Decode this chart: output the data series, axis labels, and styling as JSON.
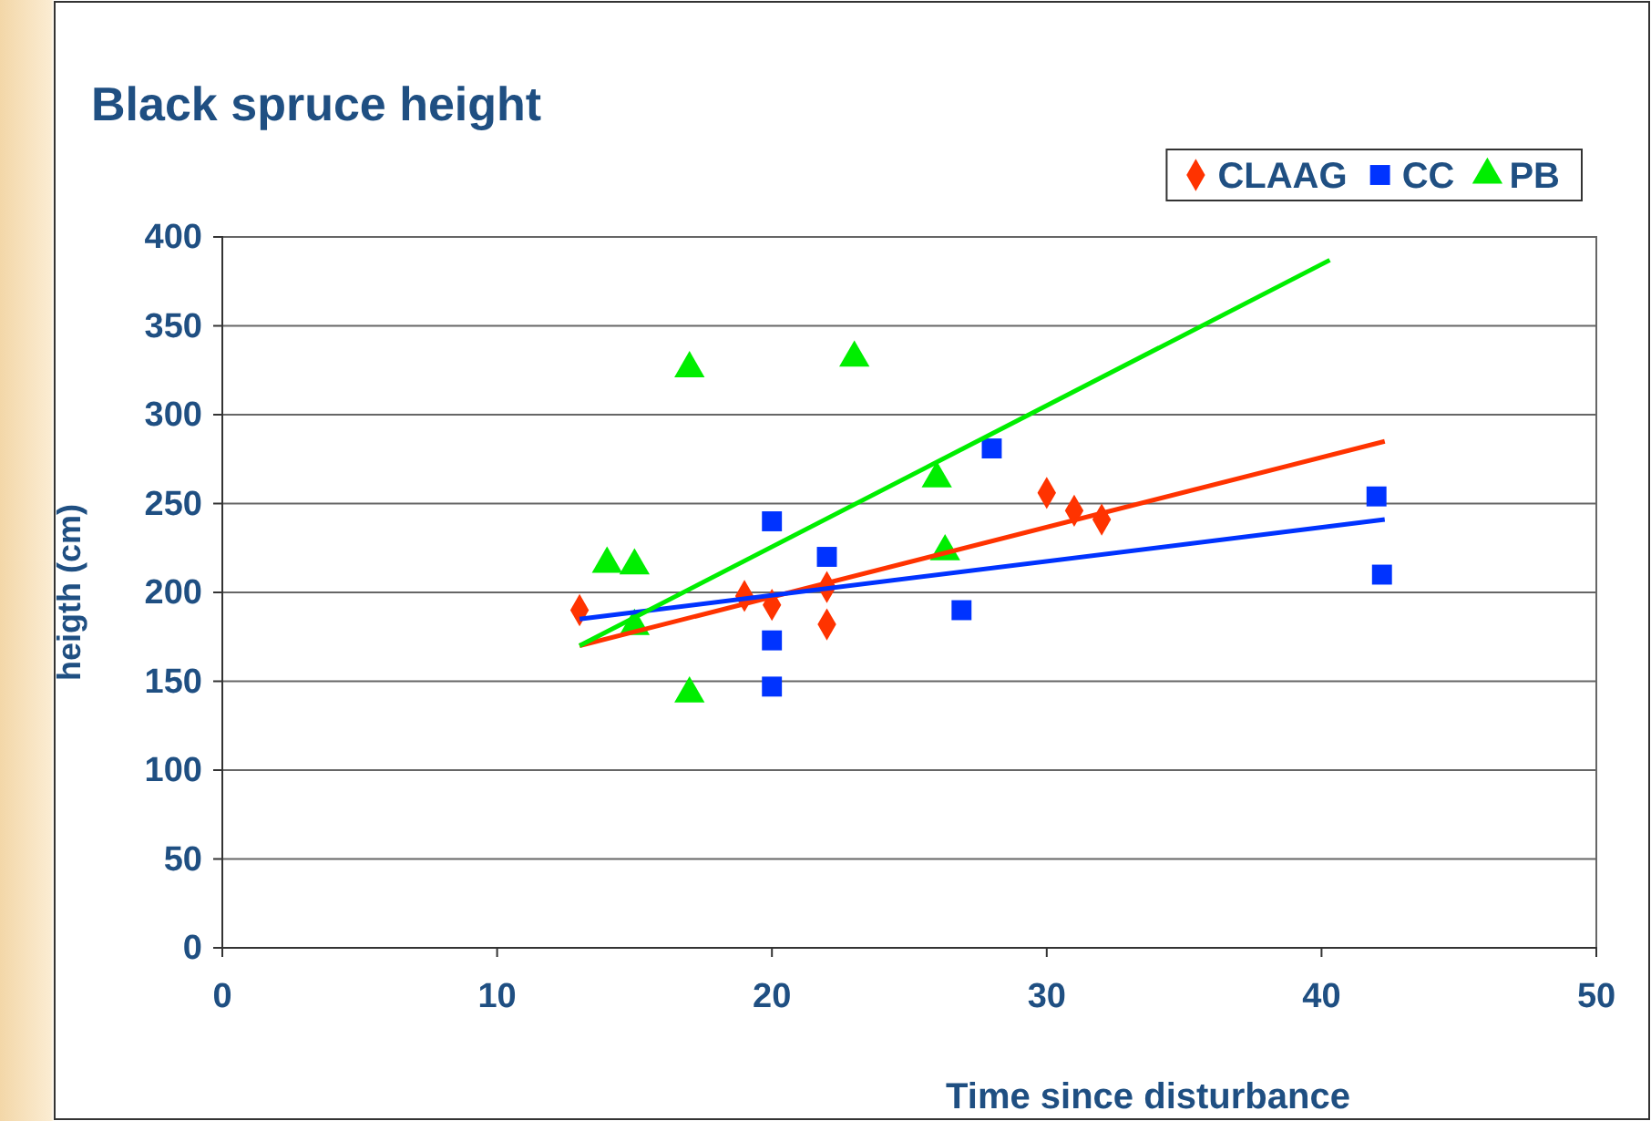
{
  "chart_data": {
    "type": "scatter",
    "title": "Black spruce height",
    "xlabel": "Time since disturbance",
    "ylabel": "heigth (cm)",
    "xlim": [
      0,
      50
    ],
    "xticks": [
      0,
      10,
      20,
      30,
      40,
      50
    ],
    "ylim": [
      0,
      400
    ],
    "yticks": [
      0,
      50,
      100,
      150,
      200,
      250,
      300,
      350,
      400
    ],
    "grid": "y",
    "legend": "top right",
    "series": [
      {
        "name": "CLAAG",
        "color": "#ff3300",
        "marker": "diamond",
        "x": [
          13,
          19,
          20,
          22,
          22,
          30,
          31,
          32
        ],
        "values": [
          190,
          198,
          193,
          203,
          182,
          256,
          246,
          241
        ]
      },
      {
        "name": "CC",
        "color": "#0033ff",
        "marker": "square",
        "x": [
          20,
          20,
          20,
          22,
          26.9,
          28,
          42,
          42.2
        ],
        "values": [
          240,
          173,
          147,
          220,
          190,
          281,
          254,
          210
        ]
      },
      {
        "name": "PB",
        "color": "#00ee00",
        "marker": "triangle",
        "x": [
          14,
          15,
          15,
          17,
          17,
          23,
          26,
          26.3
        ],
        "values": [
          216,
          215,
          181,
          326,
          143,
          332,
          264,
          223
        ]
      },
      {
        "type": "line",
        "color": "#ff3300",
        "x": [
          13,
          42.3
        ],
        "values": [
          170,
          285
        ]
      },
      {
        "type": "line",
        "color": "#0033ff",
        "x": [
          13,
          42.3
        ],
        "values": [
          185,
          241
        ]
      },
      {
        "type": "line",
        "color": "#00ee00",
        "x": [
          13,
          40.3
        ],
        "values": [
          170,
          387
        ]
      }
    ]
  }
}
